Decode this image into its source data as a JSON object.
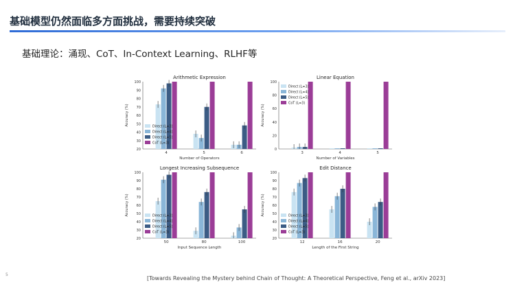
{
  "slide": {
    "title": "基础模型仍然面临多方面挑战，需要持续突破",
    "subtitle": "基础理论：涌现、CoT、In-Context Learning、RLHF等",
    "citation": "[Towards Revealing the Mystery behind Chain of Thought: A Theoretical Perspective, Feng et al., arXiv 2023]",
    "page_number": "5"
  },
  "colors": {
    "accent_rule": "#2e6bd6",
    "L3": "#c9e3f2",
    "L4": "#8ab6d8",
    "L5": "#3c5c85",
    "CoT": "#9b3d97"
  },
  "legend": [
    "Direct (L=3)",
    "Direct (L=4)",
    "Direct (L=5)",
    "CoT    (L=3)"
  ],
  "chart_data": [
    {
      "type": "bar",
      "title": "Arithmetic Expression",
      "xlabel": "Number of Operators",
      "ylabel": "Accuracy (%)",
      "categories": [
        "4",
        "5",
        "6"
      ],
      "ylim": [
        20,
        100
      ],
      "yticks": [
        20,
        30,
        40,
        50,
        60,
        70,
        80,
        90,
        100
      ],
      "legend_position": "bottom-left",
      "series": [
        {
          "name": "Direct (L=3)",
          "values": [
            73,
            38,
            25
          ]
        },
        {
          "name": "Direct (L=4)",
          "values": [
            92,
            33,
            25
          ]
        },
        {
          "name": "Direct (L=5)",
          "values": [
            98,
            70,
            48
          ]
        },
        {
          "name": "CoT    (L=3)",
          "values": [
            100,
            100,
            100
          ]
        }
      ]
    },
    {
      "type": "bar",
      "title": "Linear Equation",
      "xlabel": "Number of Variables",
      "ylabel": "Accuracy (%)",
      "categories": [
        "3",
        "4",
        "5"
      ],
      "ylim": [
        0,
        100
      ],
      "yticks": [
        0,
        20,
        40,
        60,
        80,
        100
      ],
      "legend_position": "top-left",
      "series": [
        {
          "name": "Direct (L=3)",
          "values": [
            2,
            1,
            1
          ]
        },
        {
          "name": "Direct (L=4)",
          "values": [
            3,
            1,
            1
          ]
        },
        {
          "name": "Direct (L=5)",
          "values": [
            3,
            1,
            1
          ]
        },
        {
          "name": "CoT    (L=3)",
          "values": [
            100,
            100,
            100
          ]
        }
      ]
    },
    {
      "type": "bar",
      "title": "Longest Increasing Subsequence",
      "xlabel": "Input Sequence Length",
      "ylabel": "Accuracy (%)",
      "categories": [
        "50",
        "80",
        "100"
      ],
      "ylim": [
        20,
        100
      ],
      "yticks": [
        20,
        30,
        40,
        50,
        60,
        70,
        80,
        90,
        100
      ],
      "legend_position": "bottom-left",
      "series": [
        {
          "name": "Direct (L=3)",
          "values": [
            65,
            29,
            23
          ]
        },
        {
          "name": "Direct (L=4)",
          "values": [
            91,
            64,
            33
          ]
        },
        {
          "name": "Direct (L=5)",
          "values": [
            97,
            76,
            55
          ]
        },
        {
          "name": "CoT    (L=3)",
          "values": [
            100,
            100,
            100
          ]
        }
      ]
    },
    {
      "type": "bar",
      "title": "Edit Distance",
      "xlabel": "Length of the First String",
      "ylabel": "Accuracy (%)",
      "categories": [
        "12",
        "16",
        "20"
      ],
      "ylim": [
        20,
        100
      ],
      "yticks": [
        20,
        30,
        40,
        50,
        60,
        70,
        80,
        90,
        100
      ],
      "legend_position": "bottom-left",
      "series": [
        {
          "name": "Direct (L=3)",
          "values": [
            76,
            55,
            40
          ]
        },
        {
          "name": "Direct (L=4)",
          "values": [
            87,
            71,
            58
          ]
        },
        {
          "name": "Direct (L=5)",
          "values": [
            93,
            80,
            64
          ]
        },
        {
          "name": "CoT    (L=3)",
          "values": [
            100,
            100,
            100
          ]
        }
      ]
    }
  ]
}
